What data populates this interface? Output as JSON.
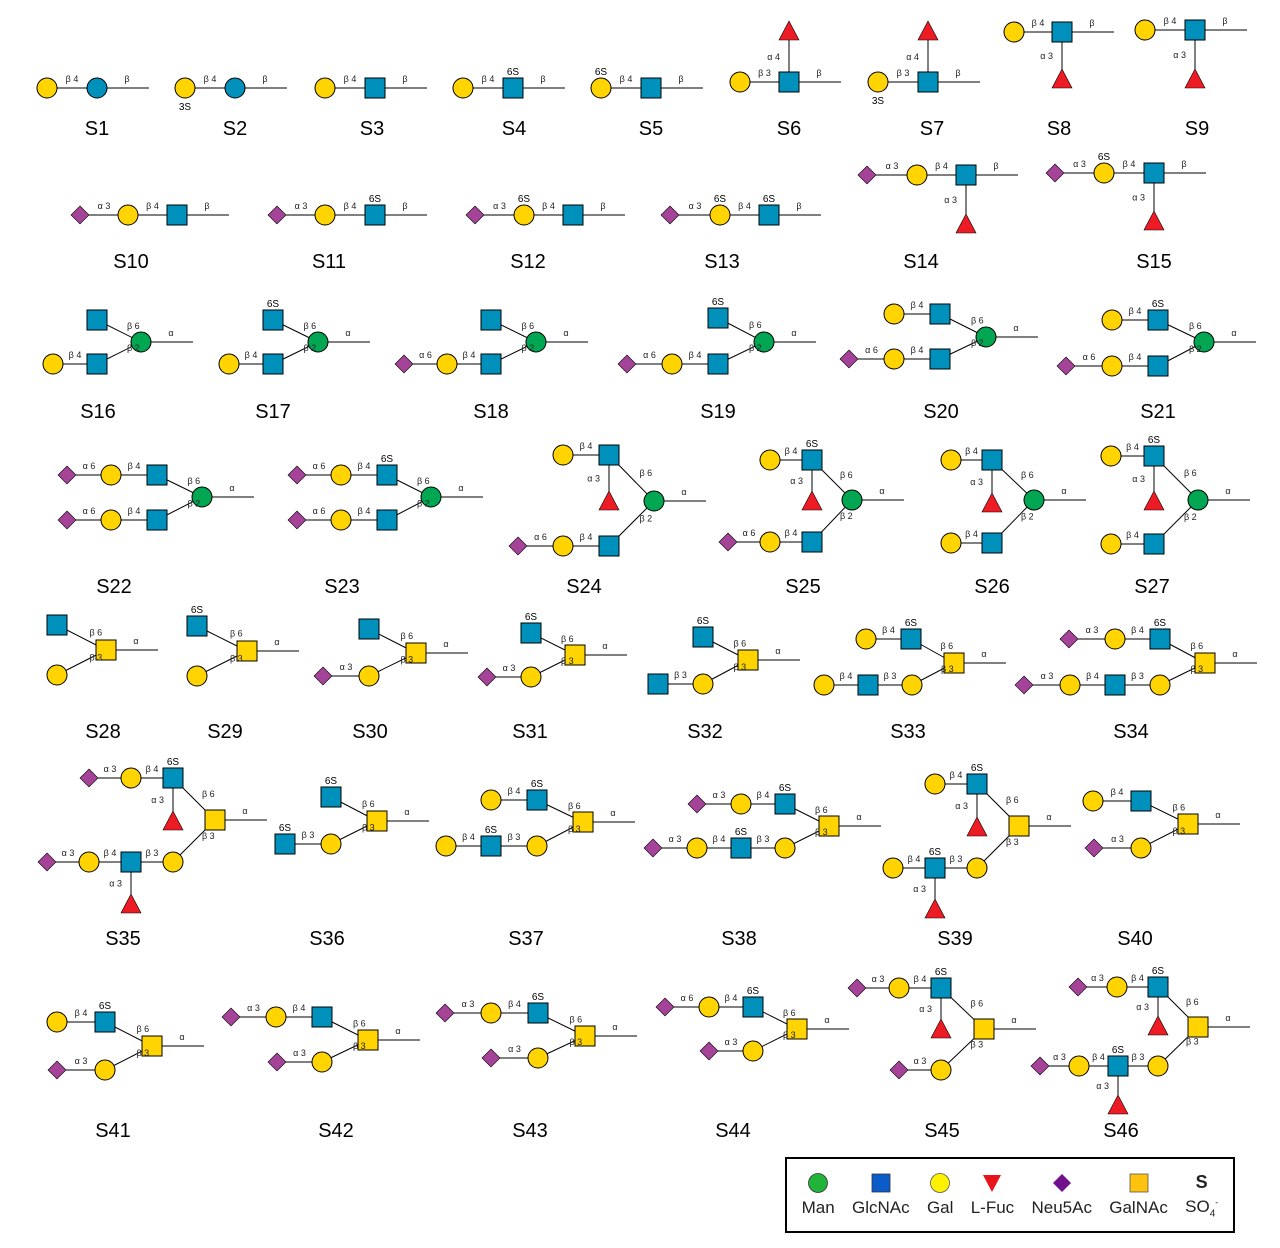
{
  "colors": {
    "Gal": "#FFD400",
    "Glc": "#0090BC",
    "GlcNAc": "#0090BC",
    "Man": "#00A651",
    "Fuc": "#ED1C24",
    "Neu5Ac": "#A54399",
    "GalNAc": "#FFD400",
    "line": "#000000"
  },
  "structures": [
    {
      "label": "S1",
      "residues": [
        [
          "Glc",
          "β",
          ""
        ],
        [
          "Gal",
          "β 4",
          ""
        ]
      ]
    },
    {
      "label": "S2",
      "residues": [
        [
          "Glc",
          "β",
          ""
        ],
        [
          "Gal",
          "β 4",
          "3S"
        ]
      ]
    },
    {
      "label": "S3",
      "residues": [
        [
          "GlcNAc",
          "β",
          ""
        ],
        [
          "Gal",
          "β 4",
          ""
        ]
      ]
    },
    {
      "label": "S4",
      "residues": [
        [
          "GlcNAc",
          "β",
          "6S"
        ],
        [
          "Gal",
          "β 4",
          ""
        ]
      ]
    },
    {
      "label": "S5",
      "residues": [
        [
          "GlcNAc",
          "β",
          ""
        ],
        [
          "Gal",
          "β 4",
          "6S"
        ]
      ]
    },
    {
      "label": "S6",
      "residues": [
        [
          "GlcNAc",
          "β",
          ""
        ],
        [
          "Gal",
          "β 3",
          ""
        ],
        [
          "Fuc",
          "α 4",
          ""
        ]
      ]
    },
    {
      "label": "S7",
      "residues": [
        [
          "GlcNAc",
          "β",
          ""
        ],
        [
          "Gal",
          "β 3",
          "3S"
        ],
        [
          "Fuc",
          "α 4",
          ""
        ]
      ]
    },
    {
      "label": "S8",
      "residues": [
        [
          "GlcNAc",
          "β",
          ""
        ],
        [
          "Gal",
          "β 4",
          ""
        ],
        [
          "Fuc",
          "α 3",
          ""
        ]
      ]
    },
    {
      "label": "S9",
      "residues": [
        [
          "GlcNAc",
          "β",
          ""
        ],
        [
          "Gal",
          "β 4",
          ""
        ],
        [
          "Fuc",
          "α 3",
          ""
        ]
      ]
    },
    {
      "label": "S10",
      "residues": [
        [
          "GlcNAc",
          "β",
          ""
        ],
        [
          "Gal",
          "β 4",
          ""
        ],
        [
          "Neu5Ac",
          "α 3",
          ""
        ]
      ]
    },
    {
      "label": "S11",
      "residues": [
        [
          "GlcNAc",
          "β",
          "6S"
        ],
        [
          "Gal",
          "β 4",
          ""
        ],
        [
          "Neu5Ac",
          "α 3",
          ""
        ]
      ]
    },
    {
      "label": "S12",
      "residues": [
        [
          "GlcNAc",
          "β",
          ""
        ],
        [
          "Gal",
          "β 4",
          "6S"
        ],
        [
          "Neu5Ac",
          "α 3",
          ""
        ]
      ]
    },
    {
      "label": "S13",
      "residues": [
        [
          "GlcNAc",
          "β",
          "6S"
        ],
        [
          "Gal",
          "β 4",
          "6S"
        ],
        [
          "Neu5Ac",
          "α 3",
          ""
        ]
      ]
    },
    {
      "label": "S14",
      "residues": [
        [
          "GlcNAc",
          "β",
          ""
        ],
        [
          "Gal",
          "β 4",
          ""
        ],
        [
          "Neu5Ac",
          "α 3",
          ""
        ],
        [
          "Fuc",
          "α 3",
          ""
        ]
      ]
    },
    {
      "label": "S15",
      "residues": [
        [
          "GlcNAc",
          "β",
          ""
        ],
        [
          "Gal",
          "β 4",
          "6S"
        ],
        [
          "Neu5Ac",
          "α 3",
          ""
        ],
        [
          "Fuc",
          "α 3",
          ""
        ]
      ]
    },
    {
      "label": "S16",
      "residues": [
        [
          "Man",
          "α",
          ""
        ],
        [
          "GlcNAc",
          "β 6",
          ""
        ],
        [
          "GlcNAc",
          "β 2",
          ""
        ],
        [
          "Gal",
          "β 4",
          ""
        ]
      ]
    },
    {
      "label": "S17",
      "residues": [
        [
          "Man",
          "α",
          ""
        ],
        [
          "GlcNAc",
          "β 6",
          "6S"
        ],
        [
          "GlcNAc",
          "β 2",
          ""
        ],
        [
          "Gal",
          "β 4",
          ""
        ]
      ]
    },
    {
      "label": "S18",
      "residues": [
        [
          "Man",
          "α",
          ""
        ],
        [
          "GlcNAc",
          "β 6",
          ""
        ],
        [
          "GlcNAc",
          "β 2",
          ""
        ],
        [
          "Gal",
          "β 4",
          ""
        ],
        [
          "Neu5Ac",
          "α 6",
          ""
        ]
      ]
    },
    {
      "label": "S19",
      "residues": [
        [
          "Man",
          "α",
          ""
        ],
        [
          "GlcNAc",
          "β 6",
          "6S"
        ],
        [
          "GlcNAc",
          "β 2",
          ""
        ],
        [
          "Gal",
          "β 4",
          ""
        ],
        [
          "Neu5Ac",
          "α 6",
          ""
        ]
      ]
    },
    {
      "label": "S20",
      "residues": [
        [
          "Man",
          "α",
          ""
        ],
        [
          "GlcNAc",
          "β 6",
          ""
        ],
        [
          "Gal",
          "β 4",
          ""
        ],
        [
          "GlcNAc",
          "β 2",
          ""
        ],
        [
          "Gal",
          "β 4",
          ""
        ],
        [
          "Neu5Ac",
          "α 6",
          ""
        ]
      ]
    },
    {
      "label": "S21",
      "residues": [
        [
          "Man",
          "α",
          ""
        ],
        [
          "GlcNAc",
          "β 6",
          "6S"
        ],
        [
          "Gal",
          "β 4",
          ""
        ],
        [
          "GlcNAc",
          "β 2",
          ""
        ],
        [
          "Gal",
          "β 4",
          ""
        ],
        [
          "Neu5Ac",
          "α 6",
          ""
        ]
      ]
    },
    {
      "label": "S22",
      "residues": [
        [
          "Man",
          "α",
          ""
        ],
        [
          "GlcNAc",
          "β 6",
          ""
        ],
        [
          "Gal",
          "β 4",
          ""
        ],
        [
          "Neu5Ac",
          "α 6",
          ""
        ],
        [
          "GlcNAc",
          "β 2",
          ""
        ],
        [
          "Gal",
          "β 4",
          ""
        ],
        [
          "Neu5Ac",
          "α 6",
          ""
        ]
      ]
    },
    {
      "label": "S23",
      "residues": [
        [
          "Man",
          "α",
          ""
        ],
        [
          "GlcNAc",
          "β 6",
          "6S"
        ],
        [
          "Gal",
          "β 4",
          ""
        ],
        [
          "Neu5Ac",
          "α 6",
          ""
        ],
        [
          "GlcNAc",
          "β 2",
          ""
        ],
        [
          "Gal",
          "β 4",
          ""
        ],
        [
          "Neu5Ac",
          "α 6",
          ""
        ]
      ]
    },
    {
      "label": "S24",
      "residues": [
        [
          "Man",
          "α",
          ""
        ],
        [
          "GlcNAc",
          "β 6",
          ""
        ],
        [
          "Gal",
          "β 4",
          ""
        ],
        [
          "Fuc",
          "α 3",
          ""
        ],
        [
          "GlcNAc",
          "β 2",
          ""
        ],
        [
          "Gal",
          "β 4",
          ""
        ],
        [
          "Neu5Ac",
          "α 6",
          ""
        ]
      ]
    },
    {
      "label": "S25",
      "residues": [
        [
          "Man",
          "α",
          ""
        ],
        [
          "GlcNAc",
          "β 6",
          "6S"
        ],
        [
          "Gal",
          "β 4",
          ""
        ],
        [
          "Fuc",
          "α 3",
          ""
        ],
        [
          "GlcNAc",
          "β 2",
          ""
        ],
        [
          "Gal",
          "β 4",
          ""
        ],
        [
          "Neu5Ac",
          "α 6",
          ""
        ]
      ]
    },
    {
      "label": "S26",
      "residues": [
        [
          "Man",
          "α",
          ""
        ],
        [
          "GlcNAc",
          "β 6",
          ""
        ],
        [
          "Gal",
          "β 4",
          ""
        ],
        [
          "Fuc",
          "α 3",
          ""
        ],
        [
          "GlcNAc",
          "β 2",
          ""
        ],
        [
          "Gal",
          "β 4",
          ""
        ]
      ]
    },
    {
      "label": "S27",
      "residues": [
        [
          "Man",
          "α",
          ""
        ],
        [
          "GlcNAc",
          "β 6",
          "6S"
        ],
        [
          "Gal",
          "β 4",
          ""
        ],
        [
          "Fuc",
          "α 3",
          ""
        ],
        [
          "GlcNAc",
          "β 2",
          ""
        ],
        [
          "Gal",
          "β 4",
          ""
        ]
      ]
    },
    {
      "label": "S28",
      "residues": [
        [
          "GalNAc",
          "α",
          ""
        ],
        [
          "GlcNAc",
          "β 6",
          ""
        ],
        [
          "Gal",
          "β 3",
          ""
        ]
      ]
    },
    {
      "label": "S29",
      "residues": [
        [
          "GalNAc",
          "α",
          ""
        ],
        [
          "GlcNAc",
          "β 6",
          "6S"
        ],
        [
          "Gal",
          "β 3",
          ""
        ]
      ]
    },
    {
      "label": "S30",
      "residues": [
        [
          "GalNAc",
          "α",
          ""
        ],
        [
          "GlcNAc",
          "β 6",
          ""
        ],
        [
          "Gal",
          "β 3",
          ""
        ],
        [
          "Neu5Ac",
          "α 3",
          ""
        ]
      ]
    },
    {
      "label": "S31",
      "residues": [
        [
          "GalNAc",
          "α",
          ""
        ],
        [
          "GlcNAc",
          "β 6",
          "6S"
        ],
        [
          "Gal",
          "β 3",
          ""
        ],
        [
          "Neu5Ac",
          "α 3",
          ""
        ]
      ]
    },
    {
      "label": "S32",
      "residues": [
        [
          "GalNAc",
          "α",
          ""
        ],
        [
          "GlcNAc",
          "β 6",
          "6S"
        ],
        [
          "Gal",
          "β 3",
          ""
        ],
        [
          "GlcNAc",
          "β 3",
          ""
        ]
      ]
    },
    {
      "label": "S33",
      "residues": [
        [
          "GalNAc",
          "α",
          ""
        ],
        [
          "GlcNAc",
          "β 6",
          "6S"
        ],
        [
          "Gal",
          "β 4",
          ""
        ],
        [
          "Gal",
          "β 3",
          ""
        ],
        [
          "GlcNAc",
          "β 3",
          ""
        ],
        [
          "Gal",
          "β 4",
          ""
        ]
      ]
    },
    {
      "label": "S34",
      "residues": [
        [
          "GalNAc",
          "α",
          ""
        ],
        [
          "GlcNAc",
          "β 6",
          "6S"
        ],
        [
          "Gal",
          "β 4",
          ""
        ],
        [
          "Neu5Ac",
          "α 3",
          ""
        ],
        [
          "Gal",
          "β 3",
          ""
        ],
        [
          "GlcNAc",
          "β 3",
          ""
        ],
        [
          "Gal",
          "β 4",
          ""
        ],
        [
          "Neu5Ac",
          "α 3",
          ""
        ]
      ]
    },
    {
      "label": "S35",
      "residues": [
        [
          "GalNAc",
          "α",
          ""
        ],
        [
          "GlcNAc",
          "β 6",
          "6S"
        ],
        [
          "Gal",
          "β 4",
          ""
        ],
        [
          "Neu5Ac",
          "α 3",
          ""
        ],
        [
          "Fuc",
          "α 3",
          ""
        ],
        [
          "Gal",
          "β 3",
          ""
        ],
        [
          "GlcNAc",
          "β 3",
          ""
        ],
        [
          "Gal",
          "β 4",
          ""
        ],
        [
          "Neu5Ac",
          "α 3",
          ""
        ],
        [
          "Fuc",
          "α 3",
          ""
        ]
      ]
    },
    {
      "label": "S36",
      "residues": [
        [
          "GalNAc",
          "α",
          ""
        ],
        [
          "GlcNAc",
          "β 6",
          "6S"
        ],
        [
          "Gal",
          "β 3",
          ""
        ],
        [
          "GlcNAc",
          "β 3",
          "6S"
        ]
      ]
    },
    {
      "label": "S37",
      "residues": [
        [
          "GalNAc",
          "α",
          ""
        ],
        [
          "GlcNAc",
          "β 6",
          "6S"
        ],
        [
          "Gal",
          "β 4",
          ""
        ],
        [
          "Gal",
          "β 3",
          ""
        ],
        [
          "GlcNAc",
          "β 3",
          "6S"
        ],
        [
          "Gal",
          "β 4",
          ""
        ]
      ]
    },
    {
      "label": "S38",
      "residues": [
        [
          "GalNAc",
          "α",
          ""
        ],
        [
          "GlcNAc",
          "β 6",
          "6S"
        ],
        [
          "Gal",
          "β 4",
          ""
        ],
        [
          "Neu5Ac",
          "α 3",
          ""
        ],
        [
          "Gal",
          "β 3",
          ""
        ],
        [
          "GlcNAc",
          "β 3",
          "6S"
        ],
        [
          "Gal",
          "β 4",
          ""
        ],
        [
          "Neu5Ac",
          "α 3",
          ""
        ]
      ]
    },
    {
      "label": "S39",
      "residues": [
        [
          "GalNAc",
          "α",
          ""
        ],
        [
          "GlcNAc",
          "β 6",
          "6S"
        ],
        [
          "Gal",
          "β 4",
          ""
        ],
        [
          "Fuc",
          "α 3",
          ""
        ],
        [
          "Gal",
          "β 3",
          ""
        ],
        [
          "GlcNAc",
          "β 3",
          "6S"
        ],
        [
          "Gal",
          "β 4",
          ""
        ],
        [
          "Fuc",
          "α 3",
          ""
        ]
      ]
    },
    {
      "label": "S40",
      "residues": [
        [
          "GalNAc",
          "α",
          ""
        ],
        [
          "GlcNAc",
          "β 6",
          ""
        ],
        [
          "Gal",
          "β 4",
          ""
        ],
        [
          "Gal",
          "β 3",
          ""
        ],
        [
          "Neu5Ac",
          "α 3",
          ""
        ]
      ]
    },
    {
      "label": "S41",
      "residues": [
        [
          "GalNAc",
          "α",
          ""
        ],
        [
          "GlcNAc",
          "β 6",
          "6S"
        ],
        [
          "Gal",
          "β 4",
          ""
        ],
        [
          "Gal",
          "β 3",
          ""
        ],
        [
          "Neu5Ac",
          "α 3",
          ""
        ]
      ]
    },
    {
      "label": "S42",
      "residues": [
        [
          "GalNAc",
          "α",
          ""
        ],
        [
          "GlcNAc",
          "β 6",
          ""
        ],
        [
          "Gal",
          "β 4",
          ""
        ],
        [
          "Neu5Ac",
          "α 3",
          ""
        ],
        [
          "Gal",
          "β 3",
          ""
        ],
        [
          "Neu5Ac",
          "α 3",
          ""
        ]
      ]
    },
    {
      "label": "S43",
      "residues": [
        [
          "GalNAc",
          "α",
          ""
        ],
        [
          "GlcNAc",
          "β 6",
          "6S"
        ],
        [
          "Gal",
          "β 4",
          ""
        ],
        [
          "Neu5Ac",
          "α 3",
          ""
        ],
        [
          "Gal",
          "β 3",
          ""
        ],
        [
          "Neu5Ac",
          "α 3",
          ""
        ]
      ]
    },
    {
      "label": "S44",
      "residues": [
        [
          "GalNAc",
          "α",
          ""
        ],
        [
          "GlcNAc",
          "β 6",
          "6S"
        ],
        [
          "Gal",
          "β 4",
          ""
        ],
        [
          "Neu5Ac",
          "α 6",
          ""
        ],
        [
          "Gal",
          "β 3",
          ""
        ],
        [
          "Neu5Ac",
          "α 3",
          ""
        ]
      ]
    },
    {
      "label": "S45",
      "residues": [
        [
          "GalNAc",
          "α",
          ""
        ],
        [
          "GlcNAc",
          "β 6",
          "6S"
        ],
        [
          "Gal",
          "β 4",
          ""
        ],
        [
          "Neu5Ac",
          "α 3",
          ""
        ],
        [
          "Fuc",
          "α 3",
          ""
        ],
        [
          "Gal",
          "β 3",
          ""
        ],
        [
          "Neu5Ac",
          "α 3",
          ""
        ]
      ]
    },
    {
      "label": "S46",
      "residues": [
        [
          "GalNAc",
          "α",
          ""
        ],
        [
          "GlcNAc",
          "β 6",
          "6S"
        ],
        [
          "Gal",
          "β 4",
          ""
        ],
        [
          "Neu5Ac",
          "α 3",
          ""
        ],
        [
          "Fuc",
          "α 3",
          ""
        ],
        [
          "Gal",
          "β 3",
          ""
        ],
        [
          "GlcNAc",
          "β 3",
          "6S"
        ],
        [
          "Gal",
          "β 4",
          ""
        ],
        [
          "Neu5Ac",
          "α 3",
          ""
        ],
        [
          "Fuc",
          "α 3",
          ""
        ]
      ]
    }
  ],
  "legend": {
    "items": [
      {
        "label": "Man",
        "icon": "green-circle-icon",
        "color": "#22B43A"
      },
      {
        "label": "GlcNAc",
        "icon": "blue-square-icon",
        "color": "#0B5CC8"
      },
      {
        "label": "Gal",
        "icon": "yellow-circle-icon",
        "color": "#FFF200"
      },
      {
        "label": "L-Fuc",
        "icon": "red-triangle-icon",
        "color": "#E8141B"
      },
      {
        "label": "Neu5Ac",
        "icon": "purple-diamond-icon",
        "color": "#70108A"
      },
      {
        "label": "GalNAc",
        "icon": "orange-square-icon",
        "color": "#FFC20E"
      }
    ],
    "sulfate_symbol": "S",
    "sulfate_label": "SO",
    "sulfate_sub": "4",
    "sulfate_sup": "-"
  }
}
